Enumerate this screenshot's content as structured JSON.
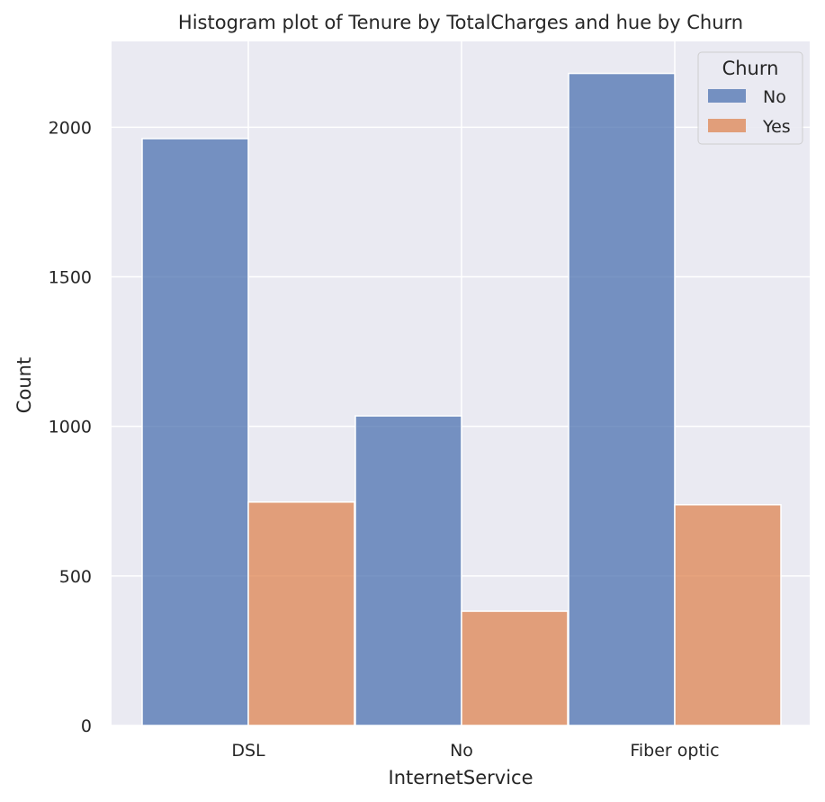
{
  "chart_data": {
    "type": "bar",
    "title": "Histogram plot of Tenure by TotalCharges and hue by Churn",
    "xlabel": "InternetService",
    "ylabel": "Count",
    "categories": [
      "DSL",
      "No",
      "Fiber optic"
    ],
    "series": [
      {
        "name": "No",
        "values": [
          1962,
          1035,
          2180
        ],
        "color": "#4c72b0"
      },
      {
        "name": "Yes",
        "values": [
          747,
          382,
          738
        ],
        "color": "#dd8452"
      }
    ],
    "ylim": [
      0,
      2287
    ],
    "yticks": [
      0,
      500,
      1000,
      1500,
      2000
    ],
    "legend": {
      "title": "Churn",
      "placement": "top-right"
    },
    "grid": true,
    "background": "#eaeaf2"
  }
}
